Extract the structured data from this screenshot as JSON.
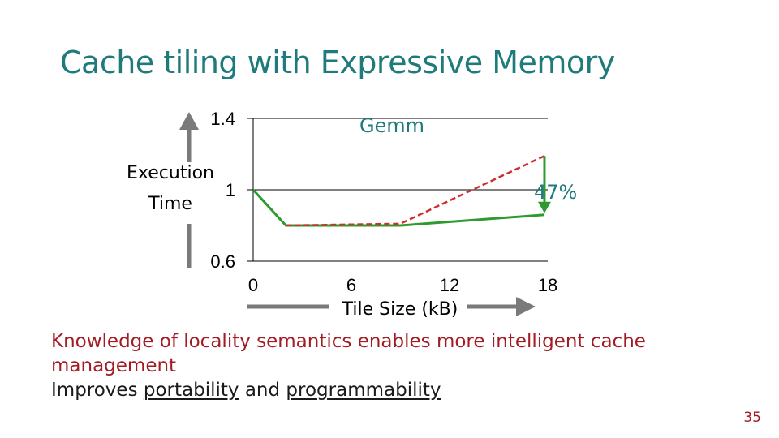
{
  "slide": {
    "title": "Cache tiling with Expressive Memory",
    "bullet1": "Knowledge of locality semantics enables more intelligent cache management",
    "bullet2_prefix": "Improves ",
    "bullet2_word1": "portability",
    "bullet2_mid": " and ",
    "bullet2_word2": "programmability",
    "page_number": "35"
  },
  "chart_data": {
    "type": "line",
    "title": "Gemm",
    "ylabel_line1": "Execution",
    "ylabel_line2": "Time",
    "xlabel": "Tile Size (kB)",
    "xlim": [
      0,
      18
    ],
    "ylim": [
      0.6,
      1.4
    ],
    "xticks": [
      "0",
      "6",
      "12",
      "18"
    ],
    "yticks": [
      "1.4",
      "1",
      "0.6"
    ],
    "grid": true,
    "annotation": "47%",
    "colors": {
      "green": "#2f9a2f",
      "red": "#d12b2b",
      "teal": "#1f7b7b",
      "arrow": "#7a7a7a"
    },
    "series": [
      {
        "color": "green",
        "style": "solid",
        "x": [
          0,
          2,
          9,
          17.8
        ],
        "y": [
          1.0,
          0.8,
          0.8,
          0.86
        ]
      },
      {
        "color": "red",
        "style": "dashed",
        "x": [
          2,
          9,
          17.8
        ],
        "y": [
          0.8,
          0.81,
          1.19
        ]
      }
    ]
  }
}
